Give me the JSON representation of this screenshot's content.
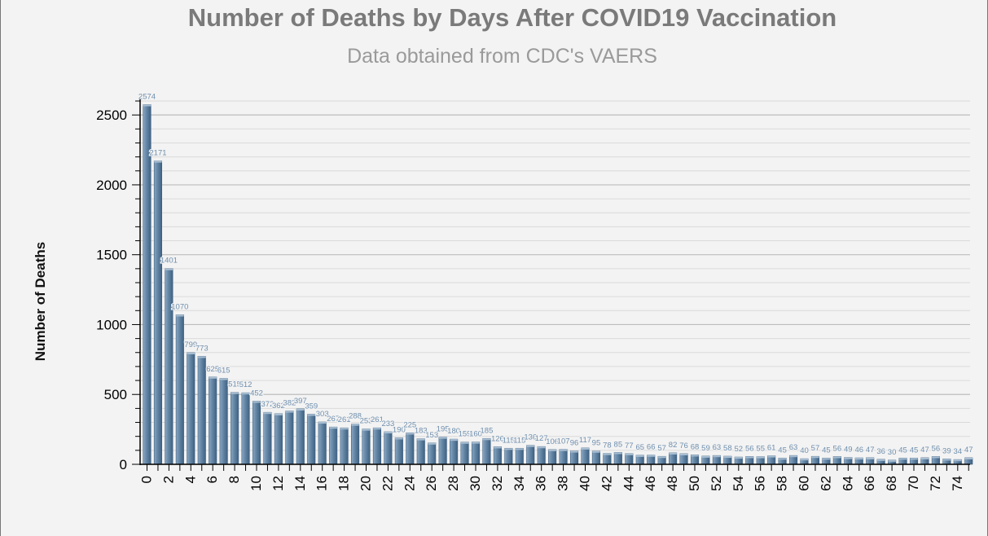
{
  "chart_data": {
    "type": "bar",
    "title": "Number of Deaths by Days After COVID19 Vaccination",
    "subtitle": "Data obtained from CDC's VAERS",
    "xlabel": "",
    "ylabel": "Number of Deaths",
    "ylim": [
      0,
      2600
    ],
    "yticks": [
      "0",
      "500",
      "1000",
      "1500",
      "2000",
      "2500"
    ],
    "xtick_labels": [
      "0",
      "2",
      "4",
      "6",
      "8",
      "10",
      "12",
      "14",
      "16",
      "18",
      "20",
      "22",
      "24",
      "26",
      "28",
      "30",
      "32",
      "34",
      "36",
      "38",
      "40",
      "42",
      "44",
      "46",
      "48",
      "50",
      "52",
      "54",
      "56",
      "58",
      "60",
      "62",
      "64",
      "66",
      "68",
      "70",
      "72",
      "74"
    ],
    "grid": true,
    "x": [
      0,
      1,
      2,
      3,
      4,
      5,
      6,
      7,
      8,
      9,
      10,
      11,
      12,
      13,
      14,
      15,
      16,
      17,
      18,
      19,
      20,
      21,
      22,
      23,
      24,
      25,
      26,
      27,
      28,
      29,
      30,
      31,
      32,
      33,
      34,
      35,
      36,
      37,
      38,
      39,
      40,
      41,
      42,
      43,
      44,
      45,
      46,
      47,
      48,
      49,
      50,
      51,
      52,
      53,
      54,
      55,
      56,
      57,
      58,
      59,
      60,
      61,
      62,
      63,
      64,
      65,
      66,
      67,
      68,
      69,
      70,
      71,
      72,
      73,
      74,
      75
    ],
    "values": [
      2574,
      2171,
      1401,
      1070,
      799,
      773,
      625,
      615,
      515,
      512,
      452,
      372,
      362,
      382,
      397,
      359,
      303,
      267,
      261,
      288,
      253,
      261,
      233,
      190,
      225,
      183,
      153,
      195,
      180,
      159,
      160,
      185,
      126,
      115,
      115,
      136,
      127,
      106,
      107,
      96,
      117,
      95,
      78,
      85,
      77,
      65,
      66,
      57,
      82,
      76,
      68,
      59,
      63,
      58,
      52,
      56,
      55,
      61,
      45,
      63,
      40,
      57,
      45,
      56,
      49,
      46,
      47,
      36,
      30,
      45,
      45,
      47,
      56,
      39,
      34,
      47
    ],
    "colors": {
      "bar": "#5f81a1",
      "bar_light": "#8aa7c2",
      "bar_dark": "#3d5f80",
      "label": "#6f8fae",
      "axis": "#000000",
      "grid_major": "#bdbdbd",
      "grid_minor": "#dadada"
    }
  }
}
